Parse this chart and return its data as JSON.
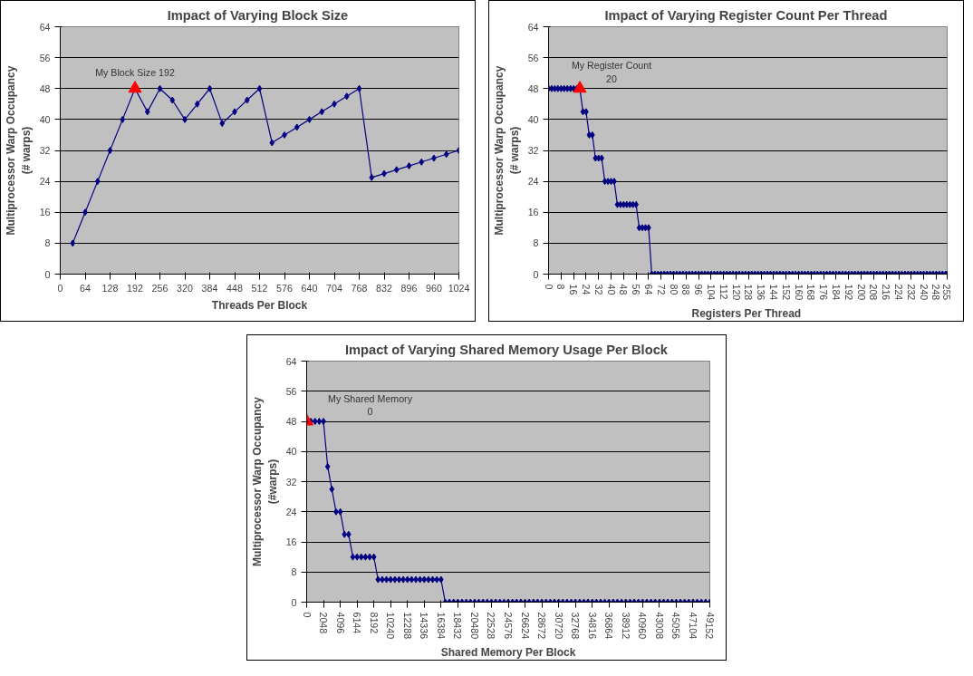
{
  "chart_data": [
    {
      "type": "line",
      "title": "Impact of Varying  Block Size",
      "xlabel": "Threads Per Block",
      "ylabel": "Multiprocessor Warp Occupancy\n(# warps)",
      "xlim": [
        0,
        1024
      ],
      "xticks": [
        0,
        64,
        128,
        192,
        256,
        320,
        384,
        448,
        512,
        576,
        640,
        704,
        768,
        832,
        896,
        960,
        1024
      ],
      "ylim": [
        0,
        64
      ],
      "yticks": [
        0,
        8,
        16,
        24,
        32,
        40,
        48,
        56,
        64
      ],
      "grid": "y",
      "marker": "diamond",
      "series": [
        {
          "color": "#000080",
          "x": [
            32,
            64,
            96,
            128,
            160,
            192,
            224,
            256,
            288,
            320,
            352,
            384,
            416,
            448,
            480,
            512,
            544,
            576,
            608,
            640,
            672,
            704,
            736,
            768,
            800,
            832,
            864,
            896,
            928,
            960,
            992,
            1024
          ],
          "values": [
            8,
            16,
            24,
            32,
            40,
            48,
            42,
            48,
            45,
            40,
            44,
            48,
            39,
            42,
            45,
            48,
            34,
            36,
            38,
            40,
            42,
            44,
            46,
            48,
            25,
            26,
            27,
            28,
            29,
            30,
            31,
            32
          ]
        },
        {
          "type": "scatter",
          "color": "#ff0000",
          "marker": "triangle",
          "x": [
            192
          ],
          "values": [
            48
          ]
        }
      ],
      "annotations": [
        "My Block Size 192"
      ]
    },
    {
      "type": "line",
      "title": "Impact of Varying  Register Count Per Thread",
      "xlabel": "Registers  Per Thread",
      "ylabel": "Multiprocessor Warp Occupancy\n(# warps)",
      "xlim": [
        0,
        255
      ],
      "xticks": [
        0,
        8,
        16,
        24,
        32,
        40,
        48,
        56,
        64,
        72,
        80,
        88,
        96,
        104,
        112,
        120,
        128,
        136,
        144,
        152,
        160,
        168,
        176,
        184,
        192,
        200,
        208,
        216,
        224,
        232,
        240,
        248,
        255
      ],
      "ylim": [
        0,
        64
      ],
      "yticks": [
        0,
        8,
        16,
        24,
        32,
        40,
        48,
        56,
        64
      ],
      "grid": "y",
      "marker": "diamond",
      "series": [
        {
          "color": "#000080",
          "x": [
            0,
            2,
            4,
            6,
            8,
            10,
            12,
            14,
            16,
            18,
            20,
            22,
            24,
            26,
            28,
            30,
            32,
            34,
            36,
            38,
            40,
            42,
            44,
            46,
            48,
            50,
            52,
            54,
            56,
            58,
            60,
            62,
            64,
            66,
            68,
            70,
            72,
            74,
            76,
            78,
            80,
            82,
            84,
            86,
            88,
            90,
            92,
            94,
            96,
            98,
            100,
            102,
            104,
            106,
            108,
            110,
            112,
            114,
            116,
            118,
            120,
            122,
            124,
            126,
            128,
            130,
            132,
            134,
            136,
            138,
            140,
            142,
            144,
            146,
            148,
            150,
            152,
            154,
            156,
            158,
            160,
            162,
            164,
            166,
            168,
            170,
            172,
            174,
            176,
            178,
            180,
            182,
            184,
            186,
            188,
            190,
            192,
            194,
            196,
            198,
            200,
            202,
            204,
            206,
            208,
            210,
            212,
            214,
            216,
            218,
            220,
            222,
            224,
            226,
            228,
            230,
            232,
            234,
            236,
            238,
            240,
            242,
            244,
            246,
            248,
            250,
            252,
            254,
            255
          ],
          "values": [
            48,
            48,
            48,
            48,
            48,
            48,
            48,
            48,
            48,
            48,
            48,
            42,
            42,
            36,
            36,
            30,
            30,
            30,
            24,
            24,
            24,
            24,
            18,
            18,
            18,
            18,
            18,
            18,
            18,
            12,
            12,
            12,
            12,
            0,
            0,
            0,
            0,
            0,
            0,
            0,
            0,
            0,
            0,
            0,
            0,
            0,
            0,
            0,
            0,
            0,
            0,
            0,
            0,
            0,
            0,
            0,
            0,
            0,
            0,
            0,
            0,
            0,
            0,
            0,
            0,
            0,
            0,
            0,
            0,
            0,
            0,
            0,
            0,
            0,
            0,
            0,
            0,
            0,
            0,
            0,
            0,
            0,
            0,
            0,
            0,
            0,
            0,
            0,
            0,
            0,
            0,
            0,
            0,
            0,
            0,
            0,
            0,
            0,
            0,
            0,
            0,
            0,
            0,
            0,
            0,
            0,
            0,
            0,
            0,
            0,
            0,
            0,
            0,
            0,
            0,
            0,
            0,
            0,
            0,
            0,
            0,
            0,
            0,
            0,
            0,
            0,
            0,
            0,
            0
          ]
        },
        {
          "type": "scatter",
          "color": "#ff0000",
          "marker": "triangle",
          "x": [
            20
          ],
          "values": [
            48
          ]
        }
      ],
      "annotations": [
        "My Register Count\n20"
      ]
    },
    {
      "type": "line",
      "title": "Impact of Varying  Shared Memory Usage Per Block",
      "xlabel": "Shared Memory Per Block",
      "ylabel": "Multiprocessor Warp Occupancy\n(#warps)",
      "xlim": [
        0,
        49152
      ],
      "xticks": [
        0,
        2048,
        4096,
        6144,
        8192,
        10240,
        12288,
        14336,
        16384,
        18432,
        20480,
        22528,
        24576,
        26624,
        28672,
        30720,
        32768,
        34816,
        36864,
        38912,
        40960,
        43008,
        45056,
        47104,
        49152
      ],
      "ylim": [
        0,
        64
      ],
      "yticks": [
        0,
        8,
        16,
        24,
        32,
        40,
        48,
        56,
        64
      ],
      "grid": "y",
      "marker": "diamond",
      "series": [
        {
          "color": "#000080",
          "x": [
            0,
            512,
            1024,
            1536,
            2048,
            2560,
            3072,
            3584,
            4096,
            4608,
            5120,
            5632,
            6144,
            6656,
            7168,
            7680,
            8192,
            8704,
            9216,
            9728,
            10240,
            10752,
            11264,
            11776,
            12288,
            12800,
            13312,
            13824,
            14336,
            14848,
            15360,
            15872,
            16384,
            16896,
            17408,
            17920,
            18432,
            18944,
            19456,
            19968,
            20480,
            20992,
            21504,
            22016,
            22528,
            23040,
            23552,
            24064,
            24576,
            25088,
            25600,
            26112,
            26624,
            27136,
            27648,
            28160,
            28672,
            29184,
            29696,
            30208,
            30720,
            31232,
            31744,
            32256,
            32768,
            33280,
            33792,
            34304,
            34816,
            35328,
            35840,
            36352,
            36864,
            37376,
            37888,
            38400,
            38912,
            39424,
            39936,
            40448,
            40960,
            41472,
            41984,
            42496,
            43008,
            43520,
            44032,
            44544,
            45056,
            45568,
            46080,
            46592,
            47104,
            47616,
            48128,
            48640,
            49152
          ],
          "values": [
            48,
            48,
            48,
            48,
            48,
            36,
            30,
            24,
            24,
            18,
            18,
            12,
            12,
            12,
            12,
            12,
            12,
            6,
            6,
            6,
            6,
            6,
            6,
            6,
            6,
            6,
            6,
            6,
            6,
            6,
            6,
            6,
            6,
            0,
            0,
            0,
            0,
            0,
            0,
            0,
            0,
            0,
            0,
            0,
            0,
            0,
            0,
            0,
            0,
            0,
            0,
            0,
            0,
            0,
            0,
            0,
            0,
            0,
            0,
            0,
            0,
            0,
            0,
            0,
            0,
            0,
            0,
            0,
            0,
            0,
            0,
            0,
            0,
            0,
            0,
            0,
            0,
            0,
            0,
            0,
            0,
            0,
            0,
            0,
            0,
            0,
            0,
            0,
            0,
            0,
            0,
            0,
            0,
            0,
            0,
            0,
            0
          ]
        },
        {
          "type": "scatter",
          "color": "#ff0000",
          "marker": "triangle",
          "x": [
            0
          ],
          "values": [
            48
          ]
        }
      ],
      "annotations": [
        "My Shared Memory\n0"
      ]
    }
  ]
}
